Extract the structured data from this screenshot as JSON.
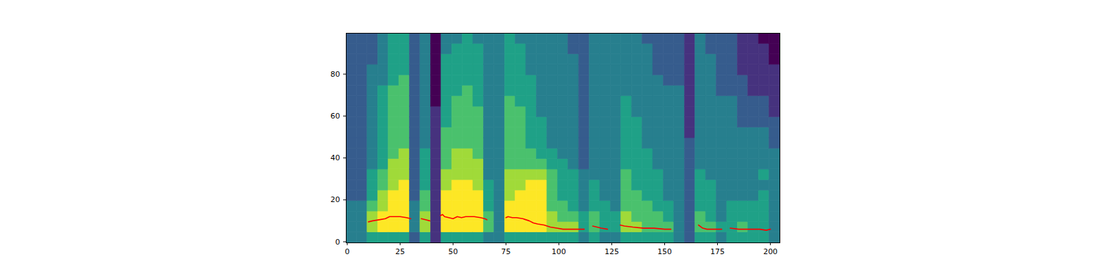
{
  "chart_data": {
    "type": "heatmap",
    "xlim": [
      -0.5,
      204.5
    ],
    "ylim": [
      -0.5,
      99.5
    ],
    "xticks": [
      0,
      25,
      50,
      75,
      100,
      125,
      150,
      175,
      200
    ],
    "yticks": [
      0,
      20,
      40,
      60,
      80
    ],
    "x_edges": [
      -0.5,
      4.5,
      9.5,
      14.5,
      19.5,
      24.5,
      29.5,
      34.5,
      39.5,
      44.5,
      49.5,
      54.5,
      59.5,
      64.5,
      69.5,
      74.5,
      79.5,
      84.5,
      89.5,
      94.5,
      99.5,
      104.5,
      109.5,
      114.5,
      119.5,
      124.5,
      129.5,
      134.5,
      139.5,
      144.5,
      149.5,
      154.5,
      159.5,
      164.5,
      169.5,
      174.5,
      179.5,
      184.5,
      189.5,
      194.5,
      199.5,
      204.5
    ],
    "y_edges": [
      -0.5,
      4.5,
      9.5,
      14.5,
      19.5,
      24.5,
      29.5,
      34.5,
      39.5,
      44.5,
      49.5,
      54.5,
      59.5,
      64.5,
      69.5,
      74.5,
      79.5,
      84.5,
      89.5,
      94.5,
      99.5
    ],
    "cells": [
      [
        4,
        4,
        4,
        4,
        3,
        3,
        3,
        3,
        3,
        3,
        3,
        3,
        3,
        3,
        3,
        3,
        3,
        3,
        3,
        3
      ],
      [
        4,
        4,
        4,
        4,
        3,
        3,
        3,
        3,
        3,
        3,
        3,
        3,
        3,
        3,
        3,
        3,
        3,
        3,
        3,
        3
      ],
      [
        5,
        7,
        7,
        6,
        5,
        5,
        5,
        4,
        4,
        4,
        4,
        4,
        4,
        4,
        4,
        4,
        4,
        3,
        3,
        3
      ],
      [
        5,
        8,
        8,
        7,
        7,
        6,
        6,
        5,
        5,
        5,
        5,
        5,
        5,
        5,
        5,
        4,
        4,
        4,
        4,
        4
      ],
      [
        5,
        8,
        8,
        8,
        8,
        7,
        7,
        7,
        6,
        6,
        6,
        6,
        6,
        6,
        6,
        5,
        5,
        5,
        5,
        5
      ],
      [
        5,
        8,
        8,
        8,
        8,
        8,
        7,
        7,
        7,
        6,
        6,
        6,
        6,
        6,
        6,
        6,
        5,
        5,
        5,
        5
      ],
      [
        3,
        4,
        4,
        4,
        3,
        3,
        3,
        3,
        3,
        3,
        3,
        3,
        3,
        3,
        3,
        3,
        3,
        3,
        3,
        3
      ],
      [
        5,
        7,
        7,
        6,
        6,
        5,
        5,
        5,
        5,
        4,
        4,
        4,
        4,
        4,
        4,
        4,
        4,
        4,
        4,
        4
      ],
      [
        2,
        2,
        2,
        2,
        2,
        2,
        2,
        2,
        2,
        2,
        2,
        2,
        2,
        1,
        1,
        1,
        1,
        1,
        1,
        1
      ],
      [
        5,
        8,
        8,
        8,
        8,
        7,
        7,
        6,
        6,
        6,
        6,
        5,
        5,
        5,
        5,
        5,
        5,
        5,
        4,
        4
      ],
      [
        5,
        8,
        8,
        8,
        8,
        8,
        7,
        7,
        7,
        6,
        6,
        6,
        6,
        6,
        5,
        5,
        5,
        5,
        5,
        4
      ],
      [
        5,
        8,
        8,
        8,
        8,
        8,
        7,
        7,
        7,
        6,
        6,
        6,
        6,
        6,
        6,
        5,
        5,
        5,
        5,
        5
      ],
      [
        5,
        8,
        8,
        8,
        8,
        7,
        7,
        7,
        6,
        6,
        6,
        6,
        6,
        5,
        5,
        5,
        5,
        5,
        5,
        4
      ],
      [
        4,
        6,
        6,
        5,
        5,
        5,
        4,
        4,
        4,
        4,
        4,
        4,
        4,
        4,
        4,
        4,
        4,
        4,
        4,
        4
      ],
      [
        4,
        4,
        4,
        4,
        4,
        4,
        4,
        4,
        4,
        4,
        4,
        4,
        4,
        4,
        4,
        4,
        4,
        4,
        4,
        4
      ],
      [
        5,
        8,
        8,
        8,
        7,
        7,
        7,
        6,
        6,
        6,
        6,
        6,
        6,
        6,
        5,
        5,
        5,
        5,
        5,
        5
      ],
      [
        5,
        8,
        8,
        8,
        8,
        7,
        7,
        6,
        6,
        6,
        6,
        6,
        6,
        5,
        5,
        5,
        5,
        5,
        5,
        4
      ],
      [
        5,
        8,
        8,
        8,
        8,
        8,
        7,
        6,
        6,
        5,
        5,
        5,
        5,
        5,
        5,
        5,
        4,
        4,
        4,
        4
      ],
      [
        5,
        8,
        8,
        8,
        8,
        8,
        7,
        6,
        5,
        5,
        5,
        5,
        4,
        4,
        4,
        4,
        4,
        4,
        4,
        4
      ],
      [
        5,
        7,
        7,
        6,
        6,
        6,
        6,
        5,
        5,
        4,
        4,
        4,
        4,
        4,
        4,
        4,
        4,
        4,
        4,
        4
      ],
      [
        5,
        7,
        6,
        6,
        5,
        5,
        5,
        5,
        4,
        4,
        4,
        4,
        4,
        4,
        4,
        4,
        4,
        4,
        4,
        4
      ],
      [
        5,
        7,
        6,
        5,
        5,
        5,
        5,
        4,
        4,
        4,
        4,
        4,
        4,
        4,
        4,
        4,
        4,
        4,
        3,
        3
      ],
      [
        4,
        5,
        5,
        4,
        4,
        4,
        4,
        3,
        3,
        3,
        3,
        3,
        3,
        3,
        3,
        3,
        3,
        3,
        3,
        3
      ],
      [
        5,
        6,
        6,
        5,
        5,
        5,
        4,
        4,
        4,
        4,
        4,
        4,
        4,
        4,
        4,
        4,
        4,
        4,
        4,
        4
      ],
      [
        4,
        5,
        5,
        5,
        4,
        4,
        4,
        4,
        4,
        4,
        4,
        4,
        4,
        4,
        4,
        4,
        4,
        4,
        4,
        4
      ],
      [
        4,
        5,
        5,
        4,
        4,
        4,
        4,
        4,
        4,
        4,
        4,
        4,
        4,
        4,
        4,
        4,
        4,
        4,
        4,
        4
      ],
      [
        5,
        7,
        7,
        6,
        6,
        6,
        6,
        5,
        5,
        5,
        5,
        5,
        5,
        5,
        4,
        4,
        4,
        4,
        4,
        4
      ],
      [
        5,
        7,
        6,
        6,
        6,
        5,
        5,
        5,
        5,
        5,
        5,
        5,
        4,
        4,
        4,
        4,
        4,
        4,
        4,
        4
      ],
      [
        5,
        6,
        6,
        6,
        5,
        5,
        5,
        5,
        5,
        4,
        4,
        4,
        4,
        4,
        4,
        4,
        4,
        4,
        4,
        3
      ],
      [
        5,
        6,
        6,
        5,
        5,
        5,
        5,
        4,
        4,
        4,
        4,
        4,
        4,
        4,
        4,
        4,
        3,
        3,
        3,
        3
      ],
      [
        5,
        6,
        5,
        5,
        4,
        4,
        4,
        4,
        4,
        4,
        4,
        4,
        4,
        4,
        4,
        3,
        3,
        3,
        3,
        3
      ],
      [
        4,
        4,
        4,
        4,
        4,
        4,
        4,
        4,
        4,
        4,
        4,
        4,
        4,
        4,
        4,
        3,
        3,
        3,
        3,
        3
      ],
      [
        3,
        3,
        3,
        3,
        3,
        3,
        3,
        3,
        3,
        3,
        2,
        2,
        2,
        2,
        2,
        2,
        2,
        2,
        2,
        2
      ],
      [
        5,
        6,
        6,
        5,
        5,
        5,
        5,
        4,
        4,
        4,
        4,
        4,
        4,
        4,
        4,
        4,
        4,
        4,
        4,
        4
      ],
      [
        5,
        6,
        5,
        5,
        5,
        5,
        4,
        4,
        4,
        4,
        4,
        4,
        4,
        4,
        4,
        4,
        4,
        4,
        3,
        3
      ],
      [
        4,
        5,
        4,
        4,
        4,
        4,
        4,
        4,
        4,
        4,
        4,
        4,
        4,
        4,
        3,
        3,
        3,
        3,
        3,
        3
      ],
      [
        5,
        5,
        5,
        5,
        4,
        4,
        4,
        4,
        4,
        4,
        4,
        4,
        4,
        4,
        3,
        3,
        3,
        3,
        3,
        3
      ],
      [
        5,
        6,
        5,
        5,
        4,
        4,
        4,
        4,
        4,
        4,
        4,
        3,
        3,
        3,
        3,
        3,
        2,
        2,
        2,
        2
      ],
      [
        5,
        5,
        5,
        5,
        4,
        4,
        4,
        4,
        4,
        4,
        4,
        3,
        3,
        3,
        2,
        2,
        2,
        2,
        2,
        2
      ],
      [
        5,
        5,
        5,
        5,
        5,
        4,
        5,
        4,
        4,
        4,
        4,
        3,
        3,
        3,
        2,
        2,
        2,
        2,
        2,
        1
      ],
      [
        4,
        4,
        4,
        4,
        4,
        4,
        4,
        4,
        4,
        3,
        3,
        3,
        2,
        2,
        2,
        2,
        2,
        1,
        1,
        1
      ]
    ],
    "series": [
      {
        "type": "line",
        "color": "red",
        "x": [
          10,
          12,
          15,
          18,
          20,
          23,
          25,
          28,
          30,
          32,
          35,
          37,
          39,
          41,
          44,
          45,
          46,
          48,
          50,
          52,
          54,
          56,
          60,
          63,
          65,
          66,
          70,
          75,
          76,
          78,
          80,
          83,
          86,
          88,
          90,
          93,
          96,
          99,
          102,
          105,
          108,
          112,
          114,
          116,
          118,
          120,
          123,
          126,
          129,
          131,
          135,
          140,
          145,
          150,
          153,
          160,
          166,
          168,
          170,
          173,
          177,
          179,
          181,
          185,
          190,
          195,
          198,
          200
        ],
        "values": [
          9.5,
          10,
          10.5,
          11,
          12,
          12,
          12,
          11.5,
          11,
          null,
          11,
          10.5,
          10,
          null,
          12.5,
          13,
          12,
          11.5,
          11,
          12,
          11.5,
          12,
          12,
          11.5,
          11,
          10.5,
          null,
          11.5,
          12,
          11.5,
          11.5,
          11,
          10,
          9,
          8.5,
          8,
          7,
          6.5,
          6,
          6,
          6,
          6,
          null,
          7.5,
          7,
          6.5,
          6,
          null,
          8,
          7.5,
          7,
          6.5,
          6.5,
          6,
          6,
          null,
          8,
          6.5,
          6,
          6,
          6,
          null,
          6.5,
          6,
          6,
          6,
          5.5,
          6
        ]
      }
    ]
  }
}
